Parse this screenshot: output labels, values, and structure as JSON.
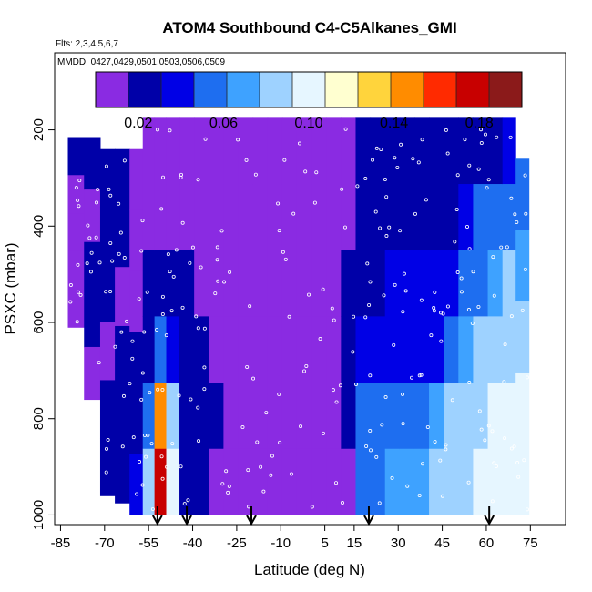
{
  "chart_data": {
    "type": "heatmap",
    "title": "ATOM4 Southbound C4-C5Alkanes_GMI",
    "flights_note": "Flts: 2,3,4,5,6,7",
    "dates_note": "MMDD: 0427,0429,0501,0503,0506,0509",
    "xlabel": "Latitude (deg N)",
    "ylabel": "PSXC (mbar)",
    "xlim": [
      -87,
      87
    ],
    "ylim": [
      1020,
      40
    ],
    "x_ticks": [
      "-85",
      "-70",
      "-55",
      "-40",
      "-25",
      "-10",
      "5",
      "15",
      "30",
      "45",
      "60",
      "75"
    ],
    "x_tick_values": [
      -85,
      -70,
      -55,
      -40,
      -25,
      -10,
      5,
      15,
      30,
      45,
      60,
      75
    ],
    "y_ticks": [
      "200",
      "400",
      "600",
      "800",
      "1000"
    ],
    "y_tick_values": [
      200,
      400,
      600,
      800,
      1000
    ],
    "colorbar": {
      "range": [
        0,
        0.2
      ],
      "tick_labels": [
        "0.02",
        "0.06",
        "0.10",
        "0.14",
        "0.18"
      ],
      "tick_values": [
        0.02,
        0.06,
        0.1,
        0.14,
        0.18
      ],
      "colors": [
        "#8a2be2",
        "#0000a8",
        "#0000e6",
        "#1e6ef0",
        "#3ea2ff",
        "#9ed2ff",
        "#e6f6ff",
        "#ffffd0",
        "#ffd43c",
        "#ff8c00",
        "#ff2a00",
        "#c80000",
        "#8b1a1a"
      ]
    },
    "arrow_latitudes": [
      -52,
      -42,
      -20,
      20,
      61
    ],
    "curtain": {
      "columns": [
        {
          "lat": -80,
          "top": 215,
          "bottom": 610,
          "v": [
            0.03,
            0.015,
            0.015,
            0.01,
            0.015
          ]
        },
        {
          "lat": -74,
          "top": 215,
          "bottom": 760,
          "v": [
            0.02,
            0.015,
            0.02,
            0.02,
            0.015
          ]
        },
        {
          "lat": -69,
          "top": 240,
          "bottom": 960,
          "v": [
            0.02,
            0.02,
            0.025,
            0.015,
            0.02,
            0.03
          ]
        },
        {
          "lat": -64,
          "top": 240,
          "bottom": 975,
          "v": [
            0.02,
            0.02,
            0.015,
            0.02,
            0.025,
            0.03
          ]
        },
        {
          "lat": -59,
          "top": 240,
          "bottom": 1000,
          "v": [
            0.015,
            0.01,
            0.015,
            0.02,
            0.03,
            0.04
          ]
        },
        {
          "lat": -55,
          "top": 175,
          "bottom": 1000,
          "v": [
            0.01,
            0.015,
            0.02,
            0.03,
            0.05,
            0.08
          ]
        },
        {
          "lat": -51,
          "top": 175,
          "bottom": 1000,
          "v": [
            0.01,
            0.01,
            0.03,
            0.06,
            0.14,
            0.17
          ]
        },
        {
          "lat": -47,
          "top": 175,
          "bottom": 1000,
          "v": [
            0.01,
            0.015,
            0.02,
            0.04,
            0.09,
            0.1
          ]
        },
        {
          "lat": -42,
          "top": 175,
          "bottom": 1000,
          "v": [
            0.01,
            0.01,
            0.02,
            0.02,
            0.03,
            0.03
          ]
        },
        {
          "lat": -37,
          "top": 175,
          "bottom": 1000,
          "v": [
            0.01,
            0.01,
            0.015,
            0.02,
            0.02,
            0.02
          ]
        },
        {
          "lat": -32,
          "top": 175,
          "bottom": 1000,
          "v": [
            0.01,
            0.01,
            0.01,
            0.015,
            0.02,
            0.015
          ]
        },
        {
          "lat": -27,
          "top": 175,
          "bottom": 1000,
          "v": [
            0.01,
            0.01,
            0.01,
            0.015,
            0.015,
            0.01
          ]
        },
        {
          "lat": -22,
          "top": 175,
          "bottom": 1000,
          "v": [
            0.01,
            0.005,
            0.01,
            0.01,
            0.015,
            0.01
          ]
        },
        {
          "lat": -17,
          "top": 175,
          "bottom": 1000,
          "v": [
            0.005,
            0.005,
            0.005,
            0.01,
            0.01,
            0.005
          ]
        },
        {
          "lat": -12,
          "top": 175,
          "bottom": 1000,
          "v": [
            0.005,
            0.005,
            0.005,
            0.005,
            0.005,
            0.005
          ]
        },
        {
          "lat": -7,
          "top": 175,
          "bottom": 1000,
          "v": [
            0.005,
            0.005,
            0.005,
            0.005,
            0.005,
            0.005
          ]
        },
        {
          "lat": -2,
          "top": 175,
          "bottom": 1000,
          "v": [
            0.005,
            0.005,
            0.005,
            0.005,
            0.005,
            0.005
          ]
        },
        {
          "lat": 3,
          "top": 175,
          "bottom": 1000,
          "v": [
            0.005,
            0.005,
            0.005,
            0.005,
            0.005,
            0.005
          ]
        },
        {
          "lat": 8,
          "top": 175,
          "bottom": 1000,
          "v": [
            0.005,
            0.005,
            0.01,
            0.01,
            0.01,
            0.005
          ]
        },
        {
          "lat": 13,
          "top": 175,
          "bottom": 1000,
          "v": [
            0.01,
            0.01,
            0.02,
            0.02,
            0.02,
            0.015
          ]
        },
        {
          "lat": 18,
          "top": 175,
          "bottom": 1000,
          "v": [
            0.02,
            0.02,
            0.03,
            0.04,
            0.05,
            0.06
          ]
        },
        {
          "lat": 23,
          "top": 175,
          "bottom": 1000,
          "v": [
            0.02,
            0.025,
            0.03,
            0.04,
            0.05,
            0.06
          ]
        },
        {
          "lat": 28,
          "top": 175,
          "bottom": 1000,
          "v": [
            0.02,
            0.03,
            0.035,
            0.04,
            0.06,
            0.07
          ]
        },
        {
          "lat": 33,
          "top": 175,
          "bottom": 1000,
          "v": [
            0.02,
            0.03,
            0.04,
            0.045,
            0.06,
            0.07
          ]
        },
        {
          "lat": 38,
          "top": 175,
          "bottom": 1000,
          "v": [
            0.02,
            0.03,
            0.04,
            0.04,
            0.06,
            0.07
          ]
        },
        {
          "lat": 43,
          "top": 175,
          "bottom": 1000,
          "v": [
            0.02,
            0.03,
            0.035,
            0.04,
            0.07,
            0.08
          ]
        },
        {
          "lat": 48,
          "top": 175,
          "bottom": 1000,
          "v": [
            0.02,
            0.03,
            0.04,
            0.05,
            0.08,
            0.08
          ]
        },
        {
          "lat": 53,
          "top": 175,
          "bottom": 1000,
          "v": [
            0.025,
            0.035,
            0.05,
            0.07,
            0.09,
            0.09
          ]
        },
        {
          "lat": 58,
          "top": 175,
          "bottom": 1000,
          "v": [
            0.03,
            0.05,
            0.06,
            0.08,
            0.09,
            0.1
          ]
        },
        {
          "lat": 63,
          "top": 175,
          "bottom": 1000,
          "v": [
            0.03,
            0.06,
            0.07,
            0.08,
            0.1,
            0.1
          ]
        },
        {
          "lat": 68,
          "top": 175,
          "bottom": 1000,
          "v": [
            0.04,
            0.06,
            0.08,
            0.09,
            0.1,
            0.1
          ]
        },
        {
          "lat": 72,
          "top": 260,
          "bottom": 1000,
          "v": [
            0.05,
            0.07,
            0.09,
            0.1,
            0.1
          ]
        }
      ]
    }
  }
}
